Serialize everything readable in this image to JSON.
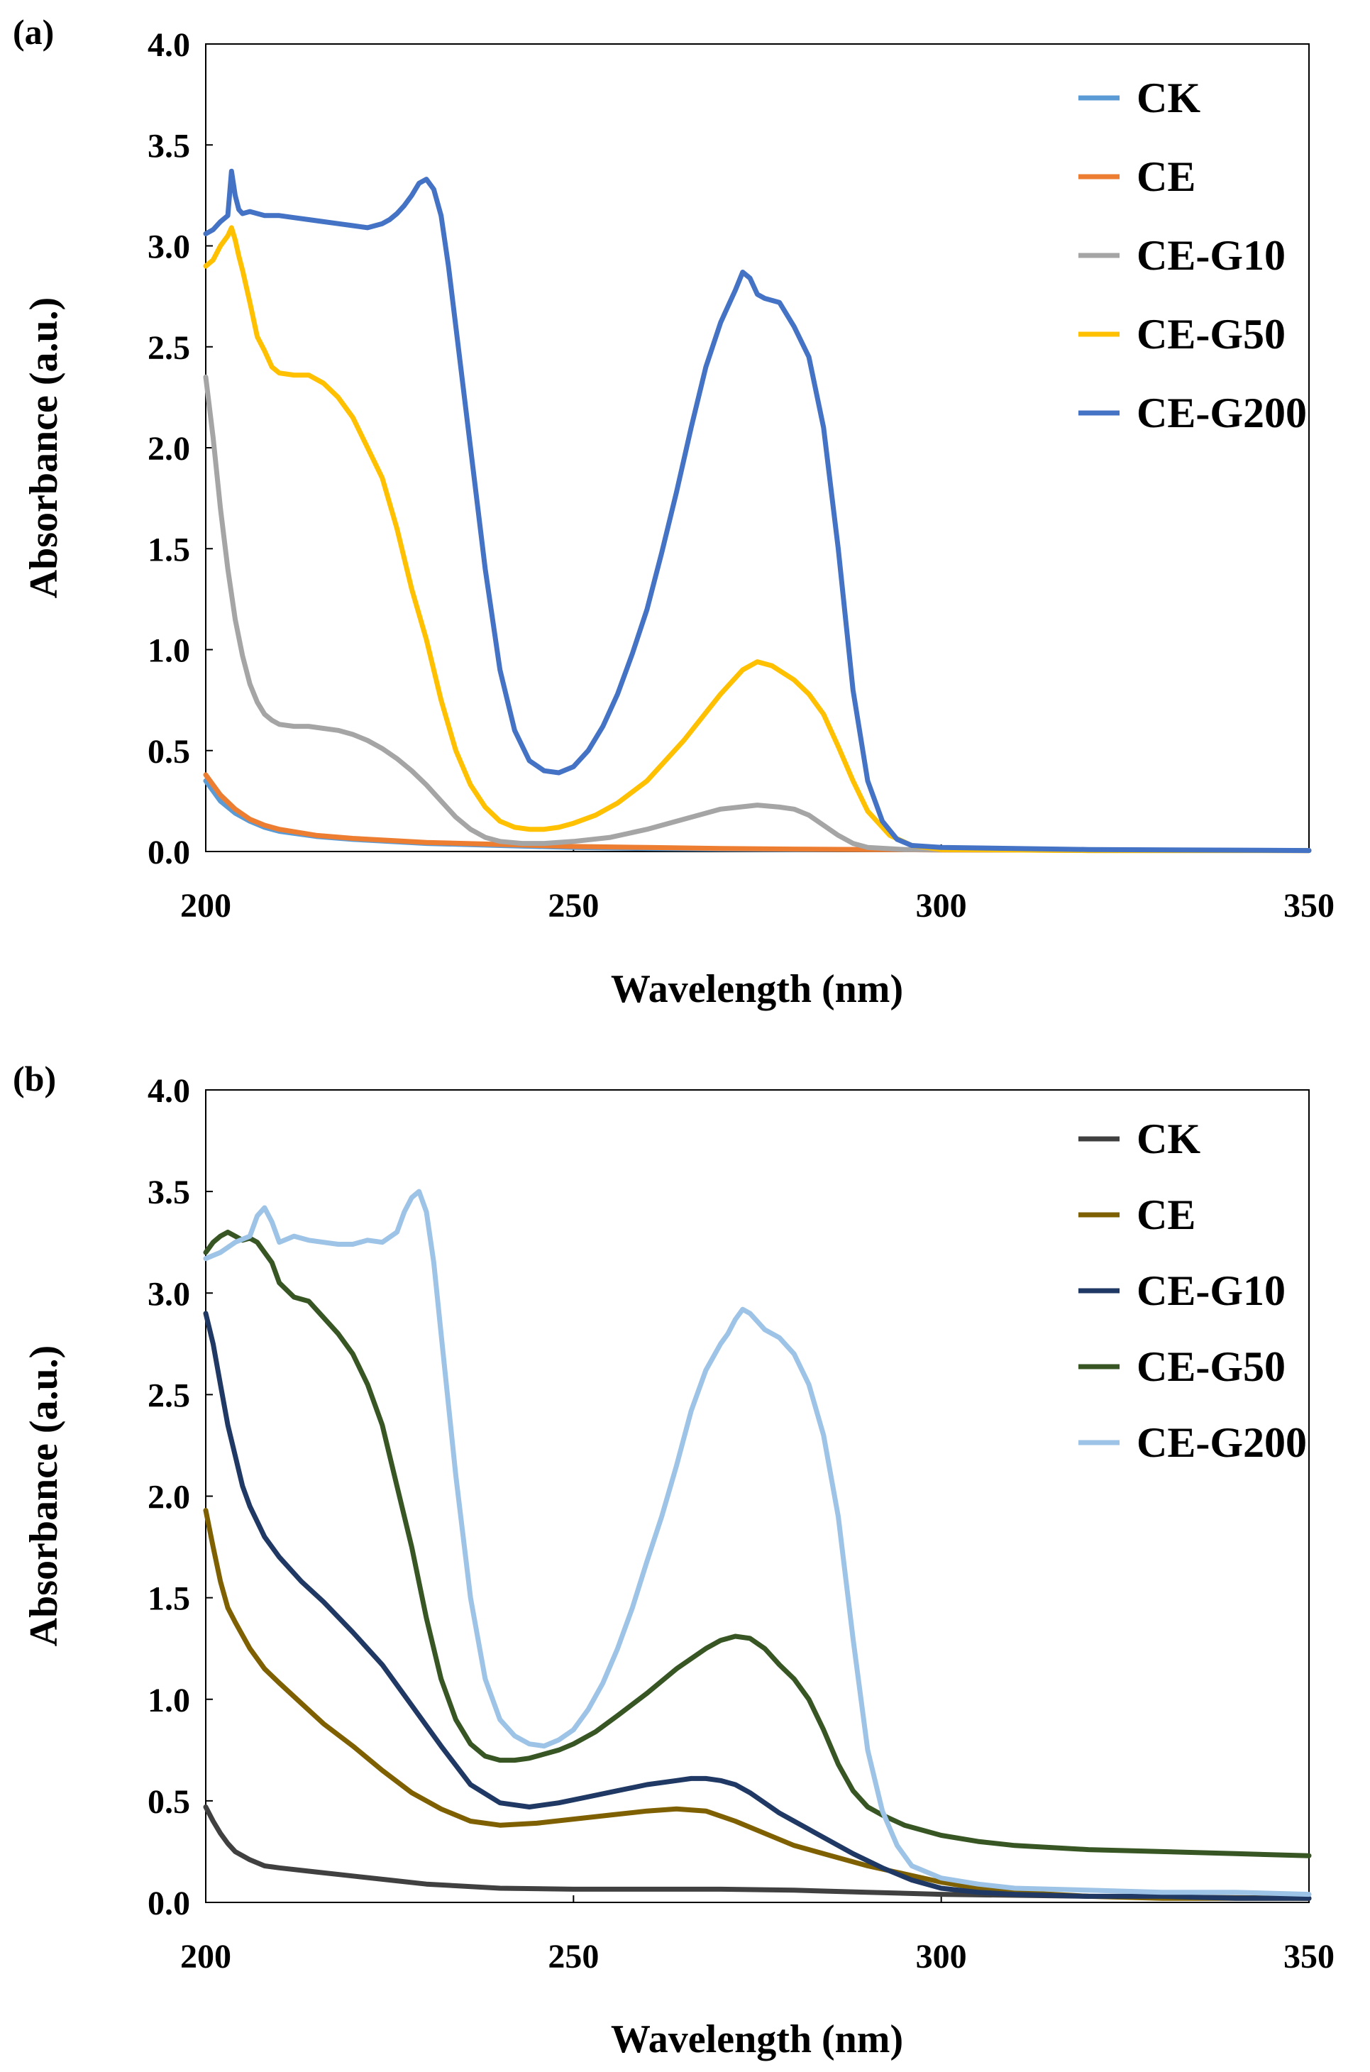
{
  "chart_data": [
    {
      "type": "line",
      "panel_label": "(a)",
      "xlabel": "Wavelength (nm)",
      "ylabel": "Absorbance (a.u.)",
      "xlim": [
        200,
        350
      ],
      "ylim": [
        0,
        4.0
      ],
      "x_ticks": [
        "200",
        "250",
        "300",
        "350"
      ],
      "y_ticks": [
        "0.0",
        "0.5",
        "1.0",
        "1.5",
        "2.0",
        "2.5",
        "3.0",
        "3.5",
        "4.0"
      ],
      "grid": false,
      "legend_position": "top-right",
      "series": [
        {
          "name": "CK",
          "color": "#5B9BD5",
          "x": [
            200,
            202,
            204,
            206,
            208,
            210,
            215,
            220,
            225,
            230,
            240,
            250,
            260,
            270,
            280,
            290,
            300,
            320,
            350
          ],
          "y": [
            0.35,
            0.25,
            0.19,
            0.15,
            0.12,
            0.1,
            0.075,
            0.06,
            0.05,
            0.04,
            0.03,
            0.02,
            0.015,
            0.012,
            0.01,
            0.01,
            0.008,
            0.006,
            0.005
          ]
        },
        {
          "name": "CE",
          "color": "#ED7D31",
          "x": [
            200,
            202,
            204,
            206,
            208,
            210,
            215,
            220,
            225,
            230,
            240,
            250,
            260,
            270,
            280,
            290,
            300,
            320,
            350
          ],
          "y": [
            0.38,
            0.28,
            0.21,
            0.16,
            0.13,
            0.11,
            0.08,
            0.065,
            0.055,
            0.045,
            0.035,
            0.025,
            0.02,
            0.015,
            0.012,
            0.01,
            0.008,
            0.006,
            0.005
          ]
        },
        {
          "name": "CE-G10",
          "color": "#A5A5A5",
          "x": [
            200,
            201,
            202,
            203,
            204,
            205,
            206,
            207,
            208,
            209,
            210,
            212,
            214,
            216,
            218,
            220,
            222,
            224,
            226,
            228,
            230,
            232,
            234,
            236,
            238,
            240,
            243,
            246,
            250,
            255,
            260,
            265,
            270,
            275,
            278,
            280,
            282,
            284,
            286,
            288,
            290,
            295,
            300,
            320,
            350
          ],
          "y": [
            2.35,
            2.05,
            1.7,
            1.4,
            1.15,
            0.97,
            0.83,
            0.74,
            0.68,
            0.65,
            0.63,
            0.62,
            0.62,
            0.61,
            0.6,
            0.58,
            0.55,
            0.51,
            0.46,
            0.4,
            0.33,
            0.25,
            0.17,
            0.11,
            0.07,
            0.05,
            0.04,
            0.04,
            0.05,
            0.07,
            0.11,
            0.16,
            0.21,
            0.23,
            0.22,
            0.21,
            0.18,
            0.13,
            0.08,
            0.04,
            0.02,
            0.01,
            0.01,
            0.005,
            0.005
          ]
        },
        {
          "name": "CE-G50",
          "color": "#FFC000",
          "x": [
            200,
            201,
            202,
            203,
            203.5,
            204,
            204.5,
            205,
            206,
            207,
            208,
            209,
            210,
            212,
            214,
            216,
            218,
            220,
            222,
            224,
            226,
            228,
            230,
            232,
            234,
            236,
            238,
            240,
            242,
            244,
            246,
            248,
            250,
            253,
            256,
            260,
            265,
            270,
            273,
            275,
            277,
            280,
            282,
            284,
            286,
            288,
            290,
            293,
            296,
            300,
            320,
            350
          ],
          "y": [
            2.9,
            2.93,
            3.0,
            3.05,
            3.09,
            3.03,
            2.95,
            2.88,
            2.72,
            2.55,
            2.48,
            2.4,
            2.37,
            2.36,
            2.36,
            2.32,
            2.25,
            2.15,
            2.0,
            1.85,
            1.6,
            1.3,
            1.05,
            0.75,
            0.5,
            0.33,
            0.22,
            0.15,
            0.12,
            0.11,
            0.11,
            0.12,
            0.14,
            0.18,
            0.24,
            0.35,
            0.55,
            0.78,
            0.9,
            0.94,
            0.92,
            0.85,
            0.78,
            0.68,
            0.52,
            0.35,
            0.2,
            0.08,
            0.03,
            0.01,
            0.005,
            0.005
          ]
        },
        {
          "name": "CE-G200",
          "color": "#4472C4",
          "x": [
            200,
            201,
            202,
            203,
            203.5,
            204,
            204.5,
            205,
            206,
            208,
            210,
            212,
            214,
            216,
            218,
            220,
            222,
            224,
            225,
            226,
            227,
            228,
            229,
            230,
            231,
            232,
            233,
            234,
            236,
            238,
            240,
            242,
            244,
            246,
            248,
            250,
            252,
            254,
            256,
            258,
            260,
            262,
            264,
            266,
            268,
            270,
            271,
            272,
            273,
            274,
            275,
            276,
            278,
            280,
            282,
            284,
            286,
            288,
            290,
            292,
            294,
            296,
            300,
            320,
            350
          ],
          "y": [
            3.06,
            3.08,
            3.12,
            3.15,
            3.37,
            3.25,
            3.18,
            3.16,
            3.17,
            3.15,
            3.15,
            3.14,
            3.13,
            3.12,
            3.11,
            3.1,
            3.09,
            3.11,
            3.13,
            3.16,
            3.2,
            3.25,
            3.31,
            3.33,
            3.28,
            3.15,
            2.9,
            2.6,
            2.0,
            1.4,
            0.9,
            0.6,
            0.45,
            0.4,
            0.39,
            0.42,
            0.5,
            0.62,
            0.78,
            0.98,
            1.2,
            1.48,
            1.78,
            2.1,
            2.4,
            2.62,
            2.7,
            2.78,
            2.87,
            2.84,
            2.76,
            2.74,
            2.72,
            2.6,
            2.45,
            2.1,
            1.5,
            0.8,
            0.35,
            0.15,
            0.06,
            0.03,
            0.02,
            0.01,
            0.005
          ]
        }
      ]
    },
    {
      "type": "line",
      "panel_label": "(b)",
      "xlabel": "Wavelength (nm)",
      "ylabel": "Absorbance (a.u.)",
      "xlim": [
        200,
        350
      ],
      "ylim": [
        0,
        4.0
      ],
      "x_ticks": [
        "200",
        "250",
        "300",
        "350"
      ],
      "y_ticks": [
        "0.0",
        "0.5",
        "1.0",
        "1.5",
        "2.0",
        "2.5",
        "3.0",
        "3.5",
        "4.0"
      ],
      "grid": false,
      "legend_position": "top-right",
      "series": [
        {
          "name": "CK",
          "color": "#404040",
          "x": [
            200,
            201,
            202,
            203,
            204,
            206,
            208,
            210,
            215,
            220,
            225,
            230,
            240,
            250,
            260,
            270,
            280,
            290,
            300,
            320,
            350
          ],
          "y": [
            0.47,
            0.4,
            0.34,
            0.29,
            0.25,
            0.21,
            0.18,
            0.17,
            0.15,
            0.13,
            0.11,
            0.09,
            0.07,
            0.065,
            0.065,
            0.065,
            0.06,
            0.05,
            0.04,
            0.03,
            0.02
          ]
        },
        {
          "name": "CE",
          "color": "#7F6000",
          "x": [
            200,
            201,
            202,
            203,
            204,
            206,
            208,
            210,
            213,
            216,
            220,
            224,
            228,
            232,
            236,
            240,
            245,
            250,
            255,
            260,
            264,
            268,
            272,
            276,
            280,
            285,
            290,
            295,
            300,
            305,
            310,
            320,
            330,
            340,
            350
          ],
          "y": [
            1.93,
            1.75,
            1.58,
            1.45,
            1.38,
            1.25,
            1.15,
            1.08,
            0.98,
            0.88,
            0.77,
            0.65,
            0.54,
            0.46,
            0.4,
            0.38,
            0.39,
            0.41,
            0.43,
            0.45,
            0.46,
            0.45,
            0.4,
            0.34,
            0.28,
            0.23,
            0.18,
            0.14,
            0.1,
            0.07,
            0.05,
            0.03,
            0.02,
            0.02,
            0.02
          ]
        },
        {
          "name": "CE-G10",
          "color": "#1F3864",
          "x": [
            200,
            201,
            202,
            203,
            204,
            205,
            206,
            208,
            210,
            213,
            216,
            220,
            224,
            228,
            232,
            236,
            240,
            244,
            248,
            252,
            256,
            260,
            264,
            266,
            268,
            270,
            272,
            274,
            276,
            278,
            280,
            284,
            288,
            292,
            296,
            300,
            305,
            310,
            320,
            330,
            340,
            350
          ],
          "y": [
            2.9,
            2.75,
            2.55,
            2.35,
            2.2,
            2.05,
            1.95,
            1.8,
            1.7,
            1.58,
            1.48,
            1.33,
            1.17,
            0.97,
            0.77,
            0.58,
            0.49,
            0.47,
            0.49,
            0.52,
            0.55,
            0.58,
            0.6,
            0.61,
            0.61,
            0.6,
            0.58,
            0.54,
            0.49,
            0.44,
            0.4,
            0.32,
            0.24,
            0.17,
            0.11,
            0.07,
            0.05,
            0.04,
            0.03,
            0.03,
            0.02,
            0.02
          ]
        },
        {
          "name": "CE-G50",
          "color": "#375623",
          "x": [
            200,
            201,
            202,
            203,
            204,
            205,
            206,
            207,
            208,
            209,
            210,
            212,
            214,
            216,
            218,
            220,
            222,
            224,
            226,
            228,
            230,
            232,
            234,
            236,
            238,
            240,
            242,
            244,
            246,
            248,
            250,
            253,
            256,
            260,
            264,
            268,
            270,
            272,
            274,
            276,
            278,
            280,
            282,
            284,
            286,
            288,
            290,
            292,
            295,
            300,
            305,
            310,
            320,
            330,
            340,
            350
          ],
          "y": [
            3.2,
            3.25,
            3.28,
            3.3,
            3.28,
            3.26,
            3.27,
            3.25,
            3.2,
            3.15,
            3.05,
            2.98,
            2.96,
            2.88,
            2.8,
            2.7,
            2.55,
            2.35,
            2.05,
            1.75,
            1.4,
            1.1,
            0.9,
            0.78,
            0.72,
            0.7,
            0.7,
            0.71,
            0.73,
            0.75,
            0.78,
            0.84,
            0.92,
            1.03,
            1.15,
            1.25,
            1.29,
            1.31,
            1.3,
            1.25,
            1.17,
            1.1,
            1.0,
            0.85,
            0.68,
            0.55,
            0.47,
            0.43,
            0.38,
            0.33,
            0.3,
            0.28,
            0.26,
            0.25,
            0.24,
            0.23
          ]
        },
        {
          "name": "CE-G200",
          "color": "#9DC3E6",
          "x": [
            200,
            202,
            204,
            206,
            207,
            208,
            209,
            210,
            212,
            214,
            216,
            218,
            220,
            222,
            224,
            226,
            227,
            228,
            229,
            230,
            231,
            232,
            234,
            236,
            238,
            240,
            242,
            244,
            246,
            248,
            250,
            252,
            254,
            256,
            258,
            260,
            262,
            264,
            266,
            268,
            270,
            271,
            272,
            273,
            274,
            275,
            276,
            278,
            280,
            282,
            284,
            286,
            288,
            290,
            292,
            294,
            296,
            300,
            305,
            310,
            320,
            330,
            340,
            350
          ],
          "y": [
            3.17,
            3.2,
            3.25,
            3.28,
            3.38,
            3.42,
            3.35,
            3.25,
            3.28,
            3.26,
            3.25,
            3.24,
            3.24,
            3.26,
            3.25,
            3.3,
            3.4,
            3.47,
            3.5,
            3.4,
            3.15,
            2.8,
            2.1,
            1.5,
            1.1,
            0.9,
            0.82,
            0.78,
            0.77,
            0.8,
            0.85,
            0.95,
            1.08,
            1.25,
            1.45,
            1.68,
            1.9,
            2.15,
            2.42,
            2.62,
            2.75,
            2.8,
            2.87,
            2.92,
            2.9,
            2.86,
            2.82,
            2.78,
            2.7,
            2.55,
            2.3,
            1.9,
            1.3,
            0.75,
            0.45,
            0.28,
            0.18,
            0.12,
            0.09,
            0.07,
            0.06,
            0.05,
            0.05,
            0.04
          ]
        }
      ]
    }
  ]
}
